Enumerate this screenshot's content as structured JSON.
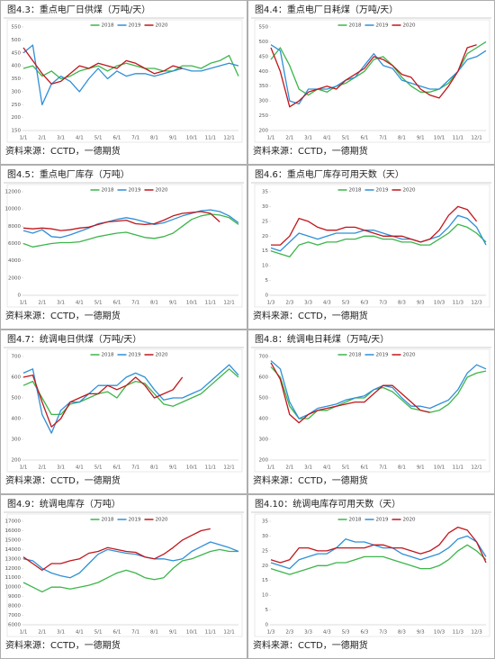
{
  "chart_data": [
    {
      "type": "line",
      "title": "图4.3：重点电厂日供煤（万吨/天）",
      "source": "资料来源：CCTD，一德期货",
      "categories": [
        "1/1",
        null,
        "2/1",
        null,
        "3/1",
        null,
        "4/1",
        null,
        "5/1",
        null,
        "6/1",
        null,
        "7/1",
        null,
        "8/1",
        null,
        "9/1",
        null,
        "10/1",
        null,
        "11/1",
        null,
        "12/1",
        null
      ],
      "ylim": [
        150,
        550
      ],
      "yticks": [
        150,
        200,
        250,
        300,
        350,
        400,
        450,
        500,
        550
      ],
      "series": [
        {
          "name": "2018",
          "color": "#3cb54a",
          "values": [
            390,
            400,
            360,
            380,
            350,
            360,
            380,
            390,
            400,
            380,
            400,
            410,
            400,
            390,
            390,
            380,
            380,
            400,
            400,
            390,
            410,
            420,
            440,
            360
          ]
        },
        {
          "name": "2019",
          "color": "#2f8fd8",
          "values": [
            450,
            480,
            250,
            330,
            360,
            340,
            300,
            350,
            390,
            350,
            380,
            360,
            370,
            370,
            360,
            370,
            380,
            390,
            380,
            380,
            390,
            400,
            410,
            400
          ]
        },
        {
          "name": "2020",
          "color": "#c0161c",
          "values": [
            470,
            420,
            370,
            330,
            340,
            370,
            400,
            390,
            410,
            400,
            390,
            420,
            410,
            390,
            370,
            380,
            400,
            390,
            null,
            null,
            null,
            null,
            null,
            null
          ]
        }
      ]
    },
    {
      "type": "line",
      "title": "图4.4：重点电厂日耗煤（万吨/天）",
      "source": "资料来源：CCTD，一德期货",
      "categories": [
        "1/1",
        null,
        "2/1",
        null,
        "3/1",
        null,
        "4/1",
        null,
        "5/1",
        null,
        "6/1",
        null,
        "7/1",
        null,
        "8/1",
        null,
        "9/1",
        null,
        "10/1",
        null,
        "11/1",
        null,
        "12/1",
        null
      ],
      "ylim": [
        200,
        550
      ],
      "yticks": [
        200,
        250,
        300,
        350,
        400,
        450,
        500,
        550
      ],
      "series": [
        {
          "name": "2018",
          "color": "#3cb54a",
          "values": [
            440,
            480,
            420,
            340,
            320,
            340,
            330,
            350,
            360,
            380,
            400,
            440,
            450,
            420,
            380,
            350,
            330,
            330,
            340,
            360,
            400,
            460,
            480,
            500
          ]
        },
        {
          "name": "2019",
          "color": "#2f8fd8",
          "values": [
            490,
            470,
            300,
            290,
            340,
            340,
            340,
            350,
            370,
            380,
            420,
            460,
            420,
            410,
            370,
            360,
            350,
            340,
            340,
            370,
            400,
            440,
            450,
            470
          ]
        },
        {
          "name": "2020",
          "color": "#c0161c",
          "values": [
            480,
            400,
            280,
            300,
            330,
            340,
            350,
            340,
            370,
            390,
            410,
            450,
            440,
            420,
            390,
            380,
            340,
            320,
            310,
            350,
            400,
            480,
            490,
            null
          ]
        }
      ]
    },
    {
      "type": "line",
      "title": "图4.5：重点电厂库存（万吨）",
      "source": "资料来源：CCTD，一德期货",
      "categories": [
        "1/1",
        null,
        "2/1",
        null,
        "3/1",
        null,
        "4/1",
        null,
        "5/1",
        null,
        "6/1",
        null,
        "7/1",
        null,
        "8/1",
        null,
        "9/1",
        null,
        "10/1",
        null,
        "11/1",
        null,
        "12/1",
        null
      ],
      "ylim": [
        0,
        12000
      ],
      "yticks": [
        0,
        2000,
        4000,
        6000,
        8000,
        10000,
        12000
      ],
      "series": [
        {
          "name": "2018",
          "color": "#3cb54a",
          "values": [
            6000,
            5600,
            5800,
            6000,
            6100,
            6100,
            6200,
            6500,
            6800,
            7000,
            7200,
            7300,
            7000,
            6700,
            6600,
            6800,
            7200,
            8000,
            8800,
            9200,
            9400,
            9300,
            9000,
            8200
          ]
        },
        {
          "name": "2019",
          "color": "#2f8fd8",
          "values": [
            7500,
            7200,
            7600,
            6800,
            6700,
            7000,
            7400,
            7800,
            8300,
            8500,
            8800,
            9000,
            8800,
            8500,
            8200,
            8400,
            8800,
            9200,
            9500,
            9800,
            9900,
            9700,
            9200,
            8400
          ]
        },
        {
          "name": "2020",
          "color": "#c0161c",
          "values": [
            7800,
            7700,
            7800,
            7700,
            7500,
            7600,
            7800,
            7900,
            8200,
            8500,
            8600,
            8700,
            8300,
            8200,
            8300,
            8700,
            9200,
            9500,
            9600,
            9700,
            9500,
            8500,
            null,
            null
          ]
        }
      ]
    },
    {
      "type": "line",
      "title": "图4.6：重点电厂库存可用天数（天）",
      "source": "资料来源：CCTD，一德期货",
      "categories": [
        "1/3",
        null,
        "2/3",
        null,
        "3/3",
        null,
        "4/3",
        null,
        "5/3",
        null,
        "6/3",
        null,
        "7/3",
        null,
        "8/3",
        null,
        "9/3",
        null,
        "10/3",
        null,
        "11/3",
        null,
        "12/3",
        null
      ],
      "ylim": [
        0,
        35
      ],
      "yticks": [
        0,
        5,
        10,
        15,
        20,
        25,
        30,
        35
      ],
      "series": [
        {
          "name": "2018",
          "color": "#3cb54a",
          "values": [
            15,
            14,
            13,
            17,
            18,
            17,
            18,
            18,
            19,
            19,
            20,
            20,
            19,
            19,
            18,
            18,
            17,
            17,
            19,
            21,
            24,
            23,
            21,
            18
          ]
        },
        {
          "name": "2019",
          "color": "#2f8fd8",
          "values": [
            16,
            15,
            18,
            21,
            20,
            19,
            20,
            21,
            21,
            21,
            22,
            22,
            21,
            20,
            19,
            19,
            18,
            19,
            20,
            23,
            27,
            26,
            23,
            17
          ]
        },
        {
          "name": "2020",
          "color": "#c0161c",
          "values": [
            17,
            17,
            20,
            26,
            25,
            23,
            22,
            22,
            23,
            23,
            22,
            21,
            20,
            20,
            20,
            19,
            18,
            19,
            22,
            27,
            30,
            29,
            25,
            null
          ]
        }
      ]
    },
    {
      "type": "line",
      "title": "图4.7：统调电日供煤（万吨/天）",
      "source": "资料来源：CCTD，一德期货",
      "categories": [
        "1/1",
        null,
        "2/1",
        null,
        "3/1",
        null,
        "4/1",
        null,
        "5/1",
        null,
        "6/1",
        null,
        "7/1",
        null,
        "8/1",
        null,
        "9/1",
        null,
        "10/1",
        null,
        "11/1",
        null,
        "12/1",
        null
      ],
      "ylim": [
        200,
        700
      ],
      "yticks": [
        200,
        300,
        400,
        500,
        600,
        700
      ],
      "series": [
        {
          "name": "2018",
          "color": "#3cb54a",
          "values": [
            560,
            580,
            500,
            420,
            420,
            470,
            480,
            500,
            520,
            530,
            500,
            560,
            580,
            570,
            520,
            470,
            460,
            480,
            500,
            520,
            560,
            600,
            640,
            600
          ]
        },
        {
          "name": "2019",
          "color": "#2f8fd8",
          "values": [
            620,
            640,
            420,
            330,
            440,
            480,
            480,
            520,
            560,
            560,
            560,
            600,
            620,
            600,
            540,
            490,
            500,
            500,
            520,
            540,
            580,
            620,
            660,
            610
          ]
        },
        {
          "name": "2020",
          "color": "#c0161c",
          "values": [
            600,
            610,
            480,
            360,
            400,
            480,
            500,
            520,
            520,
            560,
            540,
            560,
            600,
            560,
            500,
            520,
            540,
            600,
            null,
            null,
            null,
            null,
            null,
            null
          ]
        }
      ]
    },
    {
      "type": "line",
      "title": "图4.8：统调电日耗煤（万吨/天）",
      "source": "资料来源：CCTD，一德期货",
      "categories": [
        "1/1",
        null,
        "2/1",
        null,
        "3/1",
        null,
        "4/1",
        null,
        "5/1",
        null,
        "6/1",
        null,
        "7/1",
        null,
        "8/1",
        null,
        "9/1",
        null,
        "10/1",
        null,
        "11/1",
        null,
        "12/1",
        null
      ],
      "ylim": [
        200,
        700
      ],
      "yticks": [
        200,
        300,
        400,
        500,
        600,
        700
      ],
      "series": [
        {
          "name": "2018",
          "color": "#3cb54a",
          "values": [
            650,
            600,
            460,
            400,
            400,
            440,
            440,
            460,
            480,
            500,
            500,
            540,
            550,
            530,
            490,
            450,
            440,
            430,
            440,
            470,
            520,
            600,
            620,
            630
          ]
        },
        {
          "name": "2019",
          "color": "#2f8fd8",
          "values": [
            680,
            640,
            480,
            400,
            420,
            450,
            460,
            470,
            490,
            500,
            510,
            540,
            560,
            550,
            500,
            460,
            460,
            450,
            470,
            490,
            540,
            620,
            660,
            640
          ]
        },
        {
          "name": "2020",
          "color": "#c0161c",
          "values": [
            670,
            590,
            420,
            380,
            420,
            440,
            450,
            460,
            470,
            480,
            480,
            520,
            560,
            560,
            520,
            480,
            440,
            430,
            null,
            null,
            null,
            null,
            null,
            null
          ]
        }
      ]
    },
    {
      "type": "line",
      "title": "图4.9：统调电库存（万吨）",
      "source": "资料来源：CCTD，一德期货",
      "categories": [
        "1/1",
        null,
        "2/1",
        null,
        "3/1",
        null,
        "4/1",
        null,
        "5/1",
        null,
        "6/1",
        null,
        "7/1",
        null,
        "8/1",
        null,
        "9/1",
        null,
        "10/1",
        null,
        "11/1",
        null,
        "12/1",
        null
      ],
      "ylim": [
        6000,
        17000
      ],
      "yticks": [
        6000,
        7000,
        8000,
        9000,
        10000,
        11000,
        12000,
        13000,
        14000,
        15000,
        16000,
        17000
      ],
      "series": [
        {
          "name": "2018",
          "color": "#3cb54a",
          "values": [
            10500,
            10000,
            9500,
            10000,
            10000,
            9800,
            10000,
            10200,
            10500,
            11000,
            11500,
            11800,
            11500,
            11000,
            10800,
            11000,
            12000,
            12800,
            13000,
            13400,
            13800,
            14000,
            13800,
            13800
          ]
        },
        {
          "name": "2019",
          "color": "#2f8fd8",
          "values": [
            13000,
            12800,
            12000,
            11500,
            11200,
            11000,
            11500,
            12500,
            13500,
            14000,
            13800,
            13600,
            13500,
            13200,
            13000,
            13000,
            12800,
            13000,
            13800,
            14300,
            14800,
            14500,
            14200,
            13800
          ]
        },
        {
          "name": "2020",
          "color": "#c0161c",
          "values": [
            13200,
            12500,
            11800,
            12500,
            12500,
            12800,
            13000,
            13600,
            13800,
            14200,
            14000,
            13800,
            13700,
            13200,
            13000,
            13500,
            14200,
            15000,
            15500,
            16000,
            16200,
            null,
            null,
            null
          ]
        }
      ]
    },
    {
      "type": "line",
      "title": "图4.10：统调电库存可用天数（天）",
      "source": "资料来源：CCTD，一德期货",
      "categories": [
        "1/3",
        null,
        "2/3",
        null,
        "3/3",
        null,
        "4/3",
        null,
        "5/3",
        null,
        "6/3",
        null,
        "7/3",
        null,
        "8/3",
        null,
        "9/3",
        null,
        "10/3",
        null,
        "11/3",
        null,
        "12/3",
        null
      ],
      "ylim": [
        0,
        35
      ],
      "yticks": [
        0,
        5,
        10,
        15,
        20,
        25,
        30,
        35
      ],
      "series": [
        {
          "name": "2018",
          "color": "#3cb54a",
          "values": [
            19,
            18,
            17,
            18,
            19,
            20,
            20,
            21,
            21,
            22,
            23,
            23,
            23,
            22,
            21,
            20,
            19,
            19,
            20,
            22,
            25,
            27,
            25,
            22
          ]
        },
        {
          "name": "2019",
          "color": "#2f8fd8",
          "values": [
            21,
            20,
            19,
            22,
            23,
            24,
            24,
            26,
            29,
            28,
            28,
            27,
            26,
            26,
            24,
            23,
            22,
            23,
            24,
            26,
            29,
            30,
            28,
            23
          ]
        },
        {
          "name": "2020",
          "color": "#c0161c",
          "values": [
            22,
            21,
            22,
            26,
            26,
            25,
            25,
            26,
            26,
            26,
            26,
            27,
            27,
            26,
            26,
            25,
            24,
            25,
            27,
            31,
            33,
            32,
            28,
            21
          ]
        }
      ]
    }
  ]
}
